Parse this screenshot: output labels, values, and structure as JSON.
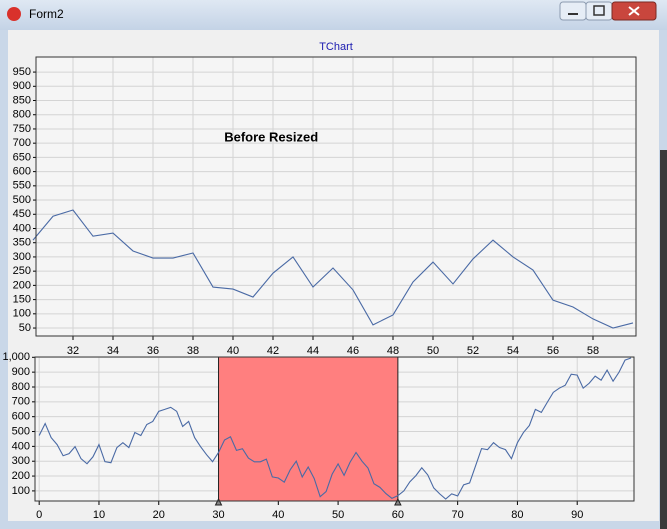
{
  "window": {
    "title": "Form2"
  },
  "chart_data": [
    {
      "type": "line",
      "title": "TChart",
      "annotation": "Before Resized",
      "x": [
        30,
        31,
        32,
        33,
        34,
        35,
        36,
        37,
        38,
        39,
        40,
        41,
        42,
        43,
        44,
        45,
        46,
        47,
        48,
        49,
        50,
        51,
        52,
        53,
        54,
        55,
        56,
        57,
        58,
        59,
        60
      ],
      "series": [
        {
          "color": "#4a6aa5",
          "values": [
            359,
            443,
            465,
            373,
            384,
            321,
            296,
            296,
            314,
            194,
            187,
            159,
            243,
            300,
            194,
            261,
            184,
            61,
            96,
            212,
            282,
            205,
            293,
            359,
            300,
            254,
            148,
            124,
            82,
            50,
            68
          ]
        }
      ],
      "xlim": [
        30.15,
        60.15
      ],
      "xticks": [
        32,
        34,
        36,
        38,
        40,
        42,
        44,
        46,
        48,
        50,
        52,
        54,
        56,
        58
      ],
      "ylim": [
        22,
        1003
      ],
      "yticks": [
        50,
        100,
        150,
        200,
        250,
        300,
        350,
        400,
        450,
        500,
        550,
        600,
        650,
        700,
        750,
        800,
        850,
        900,
        950
      ],
      "grid": true
    },
    {
      "type": "line",
      "x": [
        0,
        1,
        2,
        3,
        4,
        5,
        6,
        7,
        8,
        9,
        10,
        11,
        12,
        13,
        14,
        15,
        16,
        17,
        18,
        19,
        20,
        21,
        22,
        23,
        24,
        25,
        26,
        27,
        28,
        29,
        30,
        31,
        32,
        33,
        34,
        35,
        36,
        37,
        38,
        39,
        40,
        41,
        42,
        43,
        44,
        45,
        46,
        47,
        48,
        49,
        50,
        51,
        52,
        53,
        54,
        55,
        56,
        57,
        58,
        59,
        60,
        61,
        62,
        63,
        64,
        65,
        66,
        67,
        68,
        69,
        70,
        71,
        72,
        73,
        74,
        75,
        76,
        77,
        78,
        79,
        80,
        81,
        82,
        83,
        84,
        85,
        86,
        87,
        88,
        89,
        90,
        91,
        92,
        93,
        94,
        95,
        96,
        97,
        98,
        99
      ],
      "series": [
        {
          "color": "#4a6aa5",
          "values": [
            473,
            554,
            459,
            412,
            337,
            351,
            398,
            317,
            283,
            330,
            412,
            297,
            290,
            392,
            425,
            392,
            493,
            473,
            547,
            568,
            636,
            649,
            663,
            636,
            534,
            568,
            459,
            398,
            344,
            297,
            359,
            443,
            465,
            373,
            384,
            321,
            296,
            296,
            314,
            194,
            187,
            159,
            243,
            300,
            194,
            261,
            184,
            61,
            96,
            212,
            282,
            205,
            293,
            359,
            300,
            254,
            148,
            124,
            82,
            50,
            68,
            100,
            161,
            202,
            256,
            208,
            120,
            80,
            45,
            80,
            66,
            141,
            154,
            269,
            385,
            378,
            425,
            392,
            378,
            317,
            425,
            493,
            541,
            649,
            629,
            697,
            764,
            792,
            812,
            886,
            880,
            792,
            825,
            873,
            846,
            914,
            839,
            900,
            981,
            995
          ]
        }
      ],
      "band": {
        "start": 30,
        "end": 60,
        "color": "#ff7f7f"
      },
      "xlim": [
        -0.7,
        99.5
      ],
      "xticks": [
        0,
        10,
        20,
        30,
        40,
        50,
        60,
        70,
        80,
        90
      ],
      "ylim": [
        32,
        1002
      ],
      "yticks": [
        100,
        200,
        300,
        400,
        500,
        600,
        700,
        800,
        900,
        {
          "value": 1000,
          "label": "1,000"
        }
      ],
      "grid": true
    }
  ]
}
